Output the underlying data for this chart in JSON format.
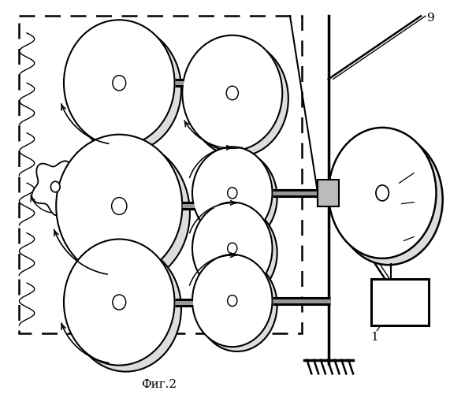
{
  "fig_label": "Фиг.2",
  "bg_color": "#ffffff",
  "line_color": "#000000"
}
